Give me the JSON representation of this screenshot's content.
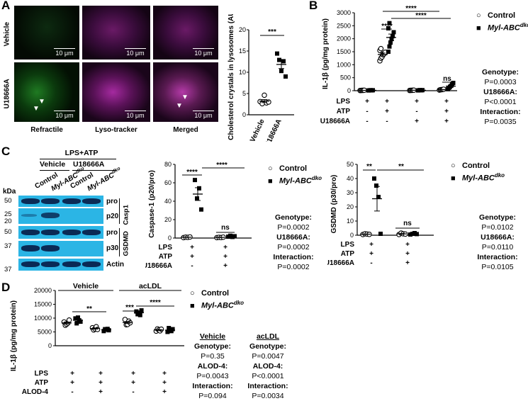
{
  "panels": {
    "A": {
      "label": "A",
      "row_labels": [
        "Vehicle",
        "U18666A"
      ],
      "col_labels": [
        "Refractile",
        "Lyso-tracker",
        "Merged"
      ],
      "scale_bar": "10 μm",
      "chart": {
        "ylabel": "Cholesterol crystals in lysosomes (AU)",
        "yticks": [
          "0",
          "5",
          "10",
          "15",
          "20"
        ],
        "categories": [
          "Vehicle",
          "U18666A"
        ],
        "sig": "***"
      }
    },
    "B": {
      "label": "B",
      "ylabel": "IL-1β (pg/mg protein)",
      "yticks": [
        "0",
        "500",
        "1000",
        "1500",
        "2000",
        "2500",
        "3000"
      ],
      "sig": [
        "****",
        "****",
        "****",
        "ns"
      ],
      "rows": [
        {
          "label": "LPS",
          "vals": [
            "+",
            "+",
            "+",
            "+"
          ]
        },
        {
          "label": "ATP",
          "vals": [
            "-",
            "+",
            "-",
            "+"
          ]
        },
        {
          "label": "U18666A",
          "vals": [
            "-",
            "-",
            "+",
            "+"
          ]
        }
      ],
      "legend": [
        "Control",
        "Myl-ABC"
      ],
      "legend_sup": "dko",
      "stats": [
        {
          "title": "Genotype:",
          "p": "P=0.0003"
        },
        {
          "title": "U18666A:",
          "p": "P<0.0001"
        },
        {
          "title": "Interaction:",
          "p": "P=0.0035"
        }
      ]
    },
    "C": {
      "label": "C",
      "blot": {
        "header": "LPS+ATP",
        "groups": [
          "Vehicle",
          "U18666A"
        ],
        "lanes": [
          "Control",
          "Myl-ABC",
          "Control",
          "Myl-ABC"
        ],
        "lane_sup": "dko",
        "kda_title": "kDa",
        "kda": [
          "50",
          "25",
          "20",
          "50",
          "37",
          "37"
        ],
        "bands": [
          "pro",
          "p20",
          "pro",
          "p30",
          "Actin"
        ],
        "proteins": [
          "Casp1",
          "GSDMD"
        ]
      },
      "casp": {
        "ylabel": "Caspase-1 (p20/pro)",
        "yticks": [
          "0",
          "20",
          "40",
          "60",
          "80"
        ],
        "sig": [
          "****",
          "****",
          "ns"
        ],
        "rows": [
          {
            "label": "LPS",
            "vals": [
              "+",
              "+"
            ]
          },
          {
            "label": "ATP",
            "vals": [
              "+",
              "+"
            ]
          },
          {
            "label": "U18666A",
            "vals": [
              "-",
              "+"
            ]
          }
        ],
        "legend": [
          "Control",
          "Myl-ABC"
        ],
        "legend_sup": "dko",
        "stats": [
          {
            "title": "Genotype:",
            "p": "P=0.0002"
          },
          {
            "title": "U18666A:",
            "p": "P=0.0002"
          },
          {
            "title": "Interaction:",
            "p": "P=0.0002"
          }
        ]
      },
      "gsdmd": {
        "ylabel": "GSDMD (p30/pro)",
        "yticks": [
          "0",
          "10",
          "20",
          "30",
          "40",
          "50"
        ],
        "sig": [
          "**",
          "**",
          "ns"
        ],
        "rows": [
          {
            "label": "LPS",
            "vals": [
              "+",
              "+"
            ]
          },
          {
            "label": "ATP",
            "vals": [
              "+",
              "+"
            ]
          },
          {
            "label": "U18666A",
            "vals": [
              "-",
              "+"
            ]
          }
        ],
        "legend": [
          "Control",
          "Myl-ABC"
        ],
        "legend_sup": "dko",
        "stats": [
          {
            "title": "Genotype:",
            "p": "P=0.0102"
          },
          {
            "title": "U18666A:",
            "p": "P=0.0110"
          },
          {
            "title": "Interaction:",
            "p": "P=0.0105"
          }
        ]
      }
    },
    "D": {
      "label": "D",
      "ylabel": "IL-1β (pg/mg protein)",
      "yticks": [
        "0",
        "5000",
        "10000",
        "15000",
        "20000"
      ],
      "groups": [
        "Vehicle",
        "acLDL"
      ],
      "sig": [
        "**",
        "***",
        "****"
      ],
      "rows": [
        {
          "label": "LPS",
          "vals": [
            "+",
            "+",
            "+",
            "+"
          ]
        },
        {
          "label": "ATP",
          "vals": [
            "+",
            "+",
            "+",
            "+"
          ]
        },
        {
          "label": "ALOD-4",
          "vals": [
            "-",
            "+",
            "-",
            "+"
          ]
        }
      ],
      "legend": [
        "Control",
        "Myl-ABC"
      ],
      "legend_sup": "dko",
      "stats_vehicle": {
        "header": "Vehicle",
        "items": [
          {
            "title": "Genotype:",
            "p": "P=0.35"
          },
          {
            "title": "ALOD-4:",
            "p": "P=0.0043"
          },
          {
            "title": "Interaction:",
            "p": "P=0.094"
          }
        ]
      },
      "stats_acldl": {
        "header": "acLDL",
        "items": [
          {
            "title": "Genotype:",
            "p": "P=0.0047"
          },
          {
            "title": "ALOD-4:",
            "p": "P<0.0001"
          },
          {
            "title": "Interaction:",
            "p": "P=0.0034"
          }
        ]
      }
    }
  },
  "chart_data": [
    {
      "type": "scatter",
      "panel": "A",
      "ylabel": "Cholesterol crystals in lysosomes (AU)",
      "ylim": [
        0,
        20
      ],
      "categories": [
        "Vehicle",
        "U18666A"
      ],
      "series": [
        {
          "values": [
            [
              3.1,
              2.6,
              4.6,
              2.8,
              3.0
            ],
            [
              14.4,
              12.9,
              10.3,
              12.6,
              9.0
            ]
          ]
        }
      ]
    },
    {
      "type": "scatter",
      "panel": "B",
      "ylabel": "IL-1β (pg/mg protein)",
      "ylim": [
        0,
        3000
      ],
      "conditions": [
        "LPS",
        "LPS+ATP",
        "LPS+U18666A",
        "LPS+ATP+U18666A"
      ],
      "series": [
        {
          "name": "Control",
          "means": [
            12,
            1400,
            15,
            40
          ]
        },
        {
          "name": "Myl-ABCdko",
          "means": [
            15,
            2050,
            18,
            160
          ]
        }
      ]
    },
    {
      "type": "scatter",
      "panel": "C-caspase1",
      "ylabel": "Caspase-1 (p20/pro)",
      "ylim": [
        0,
        80
      ],
      "categories": [
        "Vehicle",
        "U18666A"
      ],
      "series": [
        {
          "name": "Control",
          "values": [
            [
              0.5,
              1,
              0.8,
              1.2
            ],
            [
              0.5,
              0.8,
              0.6,
              1
            ]
          ]
        },
        {
          "name": "Myl-ABCdko",
          "values": [
            [
              63,
              43,
              54,
              31
            ],
            [
              1.5,
              2.5,
              1.2,
              2
            ]
          ]
        }
      ]
    },
    {
      "type": "scatter",
      "panel": "C-gsdmd",
      "ylabel": "GSDMD (p30/pro)",
      "ylim": [
        0,
        50
      ],
      "categories": [
        "Vehicle",
        "U18666A"
      ],
      "series": [
        {
          "name": "Control",
          "values": [
            [
              0.5,
              1,
              0.8,
              0.6
            ],
            [
              0.5,
              1.5,
              1,
              0.8
            ]
          ]
        },
        {
          "name": "Myl-ABCdko",
          "values": [
            [
              40,
              35,
              27,
              1
            ],
            [
              0.5,
              1,
              1.5,
              0.8
            ]
          ]
        }
      ]
    },
    {
      "type": "scatter",
      "panel": "D",
      "ylabel": "IL-1β (pg/mg protein)",
      "ylim": [
        0,
        20000
      ],
      "categories": [
        "Vehicle",
        "Vehicle+ALOD-4",
        "acLDL",
        "acLDL+ALOD-4"
      ],
      "series": [
        {
          "name": "Control",
          "values": [
            [
              8600,
              7400,
              7800,
              8200,
              9300
            ],
            [
              6500,
              5700,
              6100,
              6900,
              5900
            ],
            [
              9500,
              7600,
              7700,
              8900,
              8300
            ],
            [
              5300,
              6100,
              5700,
              5400,
              6000
            ]
          ]
        },
        {
          "name": "Myl-ABCdko",
          "values": [
            [
              9900,
              8100,
              10200,
              9200,
              8700
            ],
            [
              5300,
              6000,
              5800,
              6100,
              5600
            ],
            [
              12400,
              11400,
              12000,
              11100,
              12800
            ],
            [
              5000,
              6400,
              5600,
              5300,
              6000
            ]
          ]
        }
      ]
    }
  ]
}
